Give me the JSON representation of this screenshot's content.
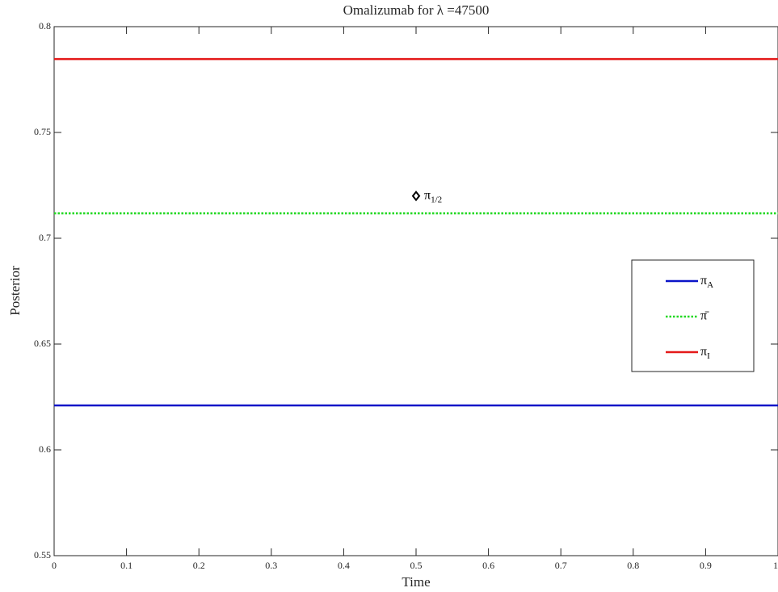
{
  "chart_data": {
    "type": "line",
    "title": "Omalizumab for λ =47500",
    "x_label": "Time",
    "y_label": "Posterior",
    "x": [
      0,
      1
    ],
    "series": [
      {
        "name": "πA",
        "color": "#0a14c8",
        "style": "solid",
        "values": [
          0.621,
          0.621
        ]
      },
      {
        "name": "π̄",
        "color": "#22d822",
        "style": "dotted",
        "values": [
          0.7118,
          0.7118
        ]
      },
      {
        "name": "πI",
        "color": "#e41a1a",
        "style": "solid",
        "values": [
          0.7847,
          0.7847
        ]
      }
    ],
    "annotations": [
      {
        "text": "π1/2",
        "x": 0.5,
        "y": 0.72,
        "marker": "diamond"
      }
    ],
    "xlim": [
      0,
      1
    ],
    "ylim": [
      0.55,
      0.8
    ],
    "xticks": [
      0,
      0.1,
      0.2,
      0.3,
      0.4,
      0.5,
      0.6,
      0.7,
      0.8,
      0.9,
      1
    ],
    "yticks": [
      0.55,
      0.6,
      0.65,
      0.7,
      0.75,
      0.8
    ],
    "grid": false,
    "legend": "right"
  }
}
